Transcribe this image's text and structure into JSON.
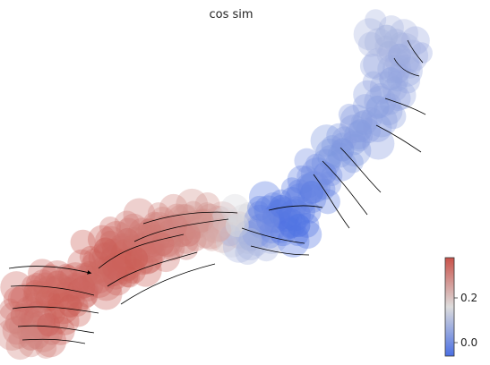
{
  "chart_data": {
    "type": "scatter",
    "title": "cos sim",
    "xlabel": "",
    "ylabel": "",
    "grid": false,
    "legend": "colorbar-bottom-right",
    "colormap": {
      "name": "coolwarm",
      "low": "#4a6fe3",
      "mid": "#dddcdc",
      "high": "#c9524a"
    },
    "colorbar": {
      "min": -0.06,
      "max": 0.38,
      "ticks": [
        {
          "value": 0.0,
          "label": "0.0"
        },
        {
          "value": 0.2,
          "label": "0.2"
        }
      ]
    },
    "xlim": [
      0,
      10
    ],
    "ylim": [
      0,
      7
    ],
    "points": [
      {
        "x": 0.3,
        "y": 0.9,
        "v": 0.33
      },
      {
        "x": 0.6,
        "y": 1.4,
        "v": 0.34
      },
      {
        "x": 0.9,
        "y": 0.7,
        "v": 0.35
      },
      {
        "x": 1.1,
        "y": 1.6,
        "v": 0.34
      },
      {
        "x": 1.4,
        "y": 1.1,
        "v": 0.36
      },
      {
        "x": 0.5,
        "y": 0.4,
        "v": 0.3
      },
      {
        "x": 1.7,
        "y": 1.5,
        "v": 0.35
      },
      {
        "x": 2.0,
        "y": 1.8,
        "v": 0.34
      },
      {
        "x": 2.2,
        "y": 2.3,
        "v": 0.36
      },
      {
        "x": 2.4,
        "y": 1.9,
        "v": 0.35
      },
      {
        "x": 2.7,
        "y": 2.5,
        "v": 0.33
      },
      {
        "x": 2.9,
        "y": 2.1,
        "v": 0.36
      },
      {
        "x": 3.2,
        "y": 2.7,
        "v": 0.32
      },
      {
        "x": 3.5,
        "y": 2.4,
        "v": 0.33
      },
      {
        "x": 3.8,
        "y": 2.8,
        "v": 0.3
      },
      {
        "x": 4.1,
        "y": 2.6,
        "v": 0.31
      },
      {
        "x": 4.4,
        "y": 2.9,
        "v": 0.28
      },
      {
        "x": 4.8,
        "y": 2.7,
        "v": 0.24
      },
      {
        "x": 5.2,
        "y": 2.8,
        "v": 0.15
      },
      {
        "x": 5.5,
        "y": 2.5,
        "v": 0.08
      },
      {
        "x": 5.9,
        "y": 2.9,
        "v": 0.0
      },
      {
        "x": 6.2,
        "y": 3.2,
        "v": -0.04
      },
      {
        "x": 6.6,
        "y": 2.8,
        "v": -0.05
      },
      {
        "x": 6.9,
        "y": 3.5,
        "v": -0.03
      },
      {
        "x": 7.2,
        "y": 3.9,
        "v": 0.0
      },
      {
        "x": 7.6,
        "y": 4.4,
        "v": 0.02
      },
      {
        "x": 8.0,
        "y": 4.8,
        "v": 0.03
      },
      {
        "x": 8.4,
        "y": 5.3,
        "v": 0.04
      },
      {
        "x": 8.7,
        "y": 5.9,
        "v": 0.05
      },
      {
        "x": 8.9,
        "y": 6.4,
        "v": 0.06
      },
      {
        "x": 8.6,
        "y": 6.8,
        "v": 0.08
      }
    ]
  }
}
